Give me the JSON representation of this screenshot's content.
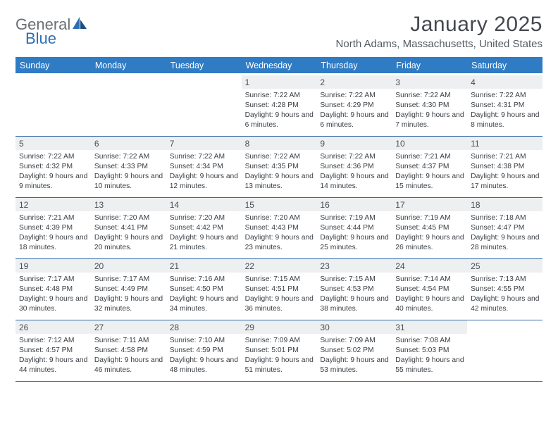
{
  "logo": {
    "word1": "General",
    "word2": "Blue"
  },
  "title": "January 2025",
  "location": "North Adams, Massachusetts, United States",
  "colors": {
    "header_bg": "#2f7bc4",
    "header_text": "#ffffff",
    "daynum_bg": "#edeff1",
    "rule": "#2f6aa8",
    "title_color": "#444950",
    "body_text": "#3a3f44",
    "logo_gray": "#6a6f74",
    "logo_blue": "#2d6fb5"
  },
  "day_names": [
    "Sunday",
    "Monday",
    "Tuesday",
    "Wednesday",
    "Thursday",
    "Friday",
    "Saturday"
  ],
  "weeks": [
    [
      null,
      null,
      null,
      {
        "n": "1",
        "sr": "7:22 AM",
        "ss": "4:28 PM",
        "dl": "9 hours and 6 minutes."
      },
      {
        "n": "2",
        "sr": "7:22 AM",
        "ss": "4:29 PM",
        "dl": "9 hours and 6 minutes."
      },
      {
        "n": "3",
        "sr": "7:22 AM",
        "ss": "4:30 PM",
        "dl": "9 hours and 7 minutes."
      },
      {
        "n": "4",
        "sr": "7:22 AM",
        "ss": "4:31 PM",
        "dl": "9 hours and 8 minutes."
      }
    ],
    [
      {
        "n": "5",
        "sr": "7:22 AM",
        "ss": "4:32 PM",
        "dl": "9 hours and 9 minutes."
      },
      {
        "n": "6",
        "sr": "7:22 AM",
        "ss": "4:33 PM",
        "dl": "9 hours and 10 minutes."
      },
      {
        "n": "7",
        "sr": "7:22 AM",
        "ss": "4:34 PM",
        "dl": "9 hours and 12 minutes."
      },
      {
        "n": "8",
        "sr": "7:22 AM",
        "ss": "4:35 PM",
        "dl": "9 hours and 13 minutes."
      },
      {
        "n": "9",
        "sr": "7:22 AM",
        "ss": "4:36 PM",
        "dl": "9 hours and 14 minutes."
      },
      {
        "n": "10",
        "sr": "7:21 AM",
        "ss": "4:37 PM",
        "dl": "9 hours and 15 minutes."
      },
      {
        "n": "11",
        "sr": "7:21 AM",
        "ss": "4:38 PM",
        "dl": "9 hours and 17 minutes."
      }
    ],
    [
      {
        "n": "12",
        "sr": "7:21 AM",
        "ss": "4:39 PM",
        "dl": "9 hours and 18 minutes."
      },
      {
        "n": "13",
        "sr": "7:20 AM",
        "ss": "4:41 PM",
        "dl": "9 hours and 20 minutes."
      },
      {
        "n": "14",
        "sr": "7:20 AM",
        "ss": "4:42 PM",
        "dl": "9 hours and 21 minutes."
      },
      {
        "n": "15",
        "sr": "7:20 AM",
        "ss": "4:43 PM",
        "dl": "9 hours and 23 minutes."
      },
      {
        "n": "16",
        "sr": "7:19 AM",
        "ss": "4:44 PM",
        "dl": "9 hours and 25 minutes."
      },
      {
        "n": "17",
        "sr": "7:19 AM",
        "ss": "4:45 PM",
        "dl": "9 hours and 26 minutes."
      },
      {
        "n": "18",
        "sr": "7:18 AM",
        "ss": "4:47 PM",
        "dl": "9 hours and 28 minutes."
      }
    ],
    [
      {
        "n": "19",
        "sr": "7:17 AM",
        "ss": "4:48 PM",
        "dl": "9 hours and 30 minutes."
      },
      {
        "n": "20",
        "sr": "7:17 AM",
        "ss": "4:49 PM",
        "dl": "9 hours and 32 minutes."
      },
      {
        "n": "21",
        "sr": "7:16 AM",
        "ss": "4:50 PM",
        "dl": "9 hours and 34 minutes."
      },
      {
        "n": "22",
        "sr": "7:15 AM",
        "ss": "4:51 PM",
        "dl": "9 hours and 36 minutes."
      },
      {
        "n": "23",
        "sr": "7:15 AM",
        "ss": "4:53 PM",
        "dl": "9 hours and 38 minutes."
      },
      {
        "n": "24",
        "sr": "7:14 AM",
        "ss": "4:54 PM",
        "dl": "9 hours and 40 minutes."
      },
      {
        "n": "25",
        "sr": "7:13 AM",
        "ss": "4:55 PM",
        "dl": "9 hours and 42 minutes."
      }
    ],
    [
      {
        "n": "26",
        "sr": "7:12 AM",
        "ss": "4:57 PM",
        "dl": "9 hours and 44 minutes."
      },
      {
        "n": "27",
        "sr": "7:11 AM",
        "ss": "4:58 PM",
        "dl": "9 hours and 46 minutes."
      },
      {
        "n": "28",
        "sr": "7:10 AM",
        "ss": "4:59 PM",
        "dl": "9 hours and 48 minutes."
      },
      {
        "n": "29",
        "sr": "7:09 AM",
        "ss": "5:01 PM",
        "dl": "9 hours and 51 minutes."
      },
      {
        "n": "30",
        "sr": "7:09 AM",
        "ss": "5:02 PM",
        "dl": "9 hours and 53 minutes."
      },
      {
        "n": "31",
        "sr": "7:08 AM",
        "ss": "5:03 PM",
        "dl": "9 hours and 55 minutes."
      },
      null
    ]
  ],
  "labels": {
    "sunrise": "Sunrise:",
    "sunset": "Sunset:",
    "daylight": "Daylight:"
  }
}
